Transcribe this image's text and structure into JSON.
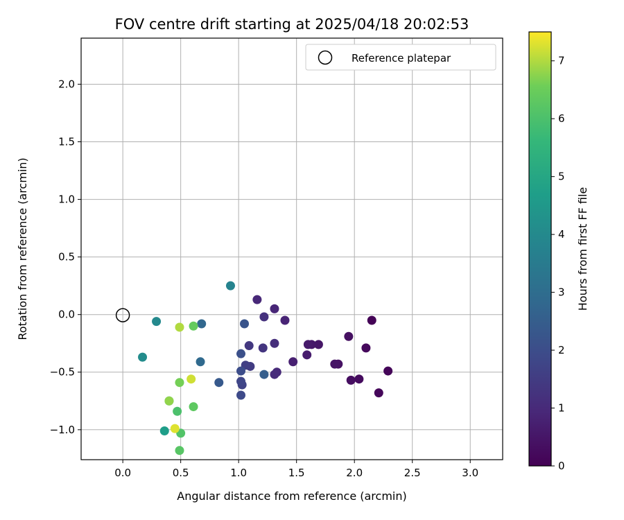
{
  "chart_data": {
    "type": "scatter",
    "title": "FOV centre drift starting at 2025/04/18 20:02:53",
    "xlabel": "Angular distance from reference (arcmin)",
    "ylabel": "Rotation from reference (arcmin)",
    "xlim": [
      -0.36,
      3.28
    ],
    "ylim": [
      -1.26,
      2.4
    ],
    "xticks": [
      "0.0",
      "0.5",
      "1.0",
      "1.5",
      "2.0",
      "2.5",
      "3.0"
    ],
    "yticks": [
      "−1.0",
      "−0.5",
      "0.0",
      "0.5",
      "1.0",
      "1.5",
      "2.0"
    ],
    "grid": true,
    "legend": {
      "placement": "top-right",
      "entries": [
        "Reference platepar"
      ]
    },
    "reference_point": {
      "x": 0.0,
      "y": 0.0
    },
    "colorbar": {
      "label": "Hours from first FF file",
      "colormap": "viridis",
      "range": [
        0,
        7.5
      ],
      "ticks": [
        "0",
        "1",
        "2",
        "3",
        "4",
        "5",
        "6",
        "7"
      ]
    },
    "points": [
      {
        "x": 2.15,
        "y": -0.05,
        "h": 0.05
      },
      {
        "x": 2.29,
        "y": -0.49,
        "h": 0.1
      },
      {
        "x": 2.21,
        "y": -0.68,
        "h": 0.15
      },
      {
        "x": 2.1,
        "y": -0.29,
        "h": 0.2
      },
      {
        "x": 2.04,
        "y": -0.56,
        "h": 0.25
      },
      {
        "x": 1.97,
        "y": -0.57,
        "h": 0.3
      },
      {
        "x": 1.95,
        "y": -0.19,
        "h": 0.35
      },
      {
        "x": 1.86,
        "y": -0.43,
        "h": 0.4
      },
      {
        "x": 1.83,
        "y": -0.43,
        "h": 0.45
      },
      {
        "x": 1.69,
        "y": -0.26,
        "h": 0.5
      },
      {
        "x": 1.63,
        "y": -0.26,
        "h": 0.55
      },
      {
        "x": 1.6,
        "y": -0.26,
        "h": 0.6
      },
      {
        "x": 1.59,
        "y": -0.35,
        "h": 0.65
      },
      {
        "x": 1.47,
        "y": -0.41,
        "h": 0.75
      },
      {
        "x": 1.4,
        "y": -0.05,
        "h": 0.85
      },
      {
        "x": 1.31,
        "y": 0.05,
        "h": 0.9
      },
      {
        "x": 1.16,
        "y": 0.13,
        "h": 0.95
      },
      {
        "x": 1.33,
        "y": -0.5,
        "h": 1.0
      },
      {
        "x": 1.31,
        "y": -0.52,
        "h": 1.05
      },
      {
        "x": 1.31,
        "y": -0.25,
        "h": 1.1
      },
      {
        "x": 1.22,
        "y": -0.02,
        "h": 1.2
      },
      {
        "x": 1.21,
        "y": -0.29,
        "h": 1.3
      },
      {
        "x": 1.09,
        "y": -0.27,
        "h": 1.4
      },
      {
        "x": 1.1,
        "y": -0.45,
        "h": 1.5
      },
      {
        "x": 1.06,
        "y": -0.44,
        "h": 1.6
      },
      {
        "x": 1.03,
        "y": -0.61,
        "h": 1.7
      },
      {
        "x": 1.02,
        "y": -0.58,
        "h": 1.8
      },
      {
        "x": 1.02,
        "y": -0.7,
        "h": 1.9
      },
      {
        "x": 1.02,
        "y": -0.49,
        "h": 2.0
      },
      {
        "x": 1.02,
        "y": -0.34,
        "h": 2.1
      },
      {
        "x": 1.05,
        "y": -0.08,
        "h": 2.2
      },
      {
        "x": 0.83,
        "y": -0.59,
        "h": 2.35
      },
      {
        "x": 1.22,
        "y": -0.52,
        "h": 2.5
      },
      {
        "x": 0.68,
        "y": -0.08,
        "h": 2.8
      },
      {
        "x": 0.67,
        "y": -0.41,
        "h": 2.9
      },
      {
        "x": 0.93,
        "y": 0.25,
        "h": 3.8
      },
      {
        "x": 0.29,
        "y": -0.06,
        "h": 4.0
      },
      {
        "x": 0.17,
        "y": -0.37,
        "h": 4.1
      },
      {
        "x": 0.36,
        "y": -1.01,
        "h": 4.7
      },
      {
        "x": 0.4,
        "y": -0.75,
        "h": 5.1
      },
      {
        "x": 0.47,
        "y": -0.84,
        "h": 6.0
      },
      {
        "x": 0.5,
        "y": -1.03,
        "h": 6.1
      },
      {
        "x": 0.49,
        "y": -1.18,
        "h": 6.2
      },
      {
        "x": 0.61,
        "y": -0.8,
        "h": 6.3
      },
      {
        "x": 0.61,
        "y": -0.1,
        "h": 6.4
      },
      {
        "x": 0.49,
        "y": -0.59,
        "h": 6.6
      },
      {
        "x": 0.4,
        "y": -0.75,
        "h": 6.8
      },
      {
        "x": 0.49,
        "y": -0.11,
        "h": 7.0
      },
      {
        "x": 0.59,
        "y": -0.56,
        "h": 7.2
      },
      {
        "x": 0.45,
        "y": -0.99,
        "h": 7.3
      }
    ]
  }
}
